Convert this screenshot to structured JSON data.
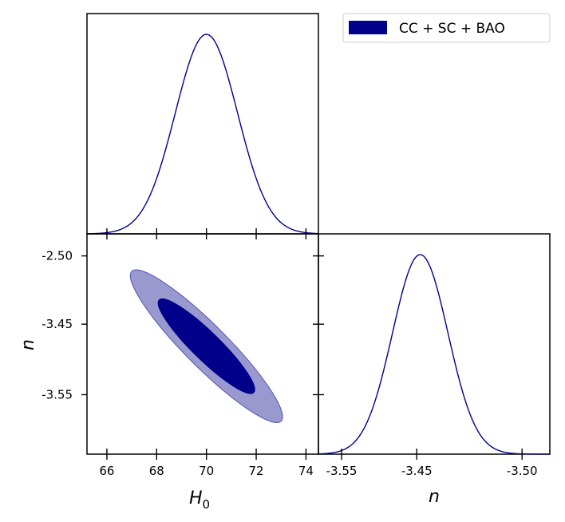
{
  "chart_data": {
    "type": "corner",
    "series_label": "CC + SC + BAO",
    "colors": {
      "line": "#00008b",
      "inner_fill": "#00008b",
      "outer_fill": "#9999d0",
      "axis": "#000000"
    },
    "parameters": [
      {
        "name": "H0",
        "label_main": "H",
        "label_sub": "0",
        "range": [
          65.2,
          74.5
        ],
        "ticks": [
          66,
          68,
          70,
          72,
          74
        ],
        "tick_labels": [
          "66",
          "68",
          "70",
          "72",
          "74"
        ],
        "peak": 70.0,
        "sigma": 1.25
      },
      {
        "name": "n",
        "label": "n"
      }
    ],
    "n_axis_left": {
      "ticks": [
        0.1,
        0.41,
        0.73
      ],
      "tick_labels": [
        "-2.50",
        "-3.45",
        "-3.55"
      ]
    },
    "n_axis_bottom": {
      "ticks": [
        0.1,
        0.425,
        0.88
      ],
      "tick_labels": [
        "-3.55",
        "-3.45",
        "-3.50"
      ]
    },
    "n_marginal": {
      "peak_position": 0.44,
      "sigma_fraction": 0.12
    },
    "contours": {
      "center": [
        70.0,
        0.51
      ],
      "inner": {
        "level": "68%",
        "h_extent": [
          68.1,
          71.9
        ],
        "n_extent": [
          0.3,
          0.72
        ]
      },
      "outer": {
        "level": "95%",
        "h_extent": [
          67.0,
          73.0
        ],
        "n_extent": [
          0.17,
          0.85
        ]
      }
    },
    "legend": {
      "position": "top-right",
      "entries": [
        "CC + SC + BAO"
      ]
    }
  }
}
